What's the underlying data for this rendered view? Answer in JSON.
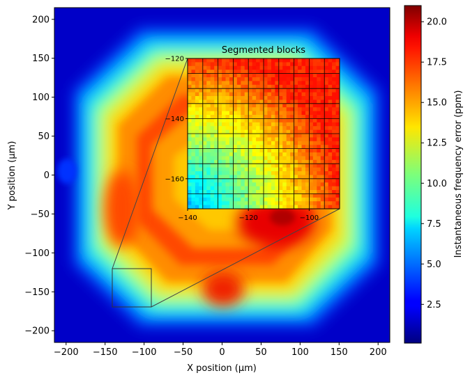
{
  "chart_data": [
    {
      "type": "heatmap",
      "xlabel": "X position (µm)",
      "ylabel": "Y position (µm)",
      "xlim": [
        -215,
        215
      ],
      "ylim": [
        -215,
        215
      ],
      "xticks": [
        -200,
        -150,
        -100,
        -50,
        0,
        50,
        100,
        150,
        200
      ],
      "yticks": [
        -200,
        -150,
        -100,
        -50,
        0,
        50,
        100,
        150,
        200
      ],
      "xtick_labels": [
        "−200",
        "−150",
        "−100",
        "−50",
        "0",
        "50",
        "100",
        "150",
        "200"
      ],
      "ytick_labels": [
        "−200",
        "−150",
        "−100",
        "−50",
        "0",
        "50",
        "100",
        "150",
        "200"
      ],
      "colormap": "jet",
      "description_of_field": "Ring-shaped region of elevated error around an octagonal pattern; peak (~21 ppm) near x=70, y=-50; low values (~1 ppm) outside radius ~200",
      "zoom_box": {
        "x": [
          -140,
          -90
        ],
        "y": [
          -170,
          -120
        ]
      }
    },
    {
      "type": "heatmap",
      "title": "Segmented blocks",
      "xlim": [
        -140,
        -90
      ],
      "ylim": [
        -170,
        -120
      ],
      "xticks": [
        -140,
        -120,
        -100
      ],
      "yticks": [
        -160,
        -140,
        -120
      ],
      "xtick_labels": [
        "−140",
        "−120",
        "−100"
      ],
      "ytick_labels": [
        "−160",
        "−140",
        "−120"
      ],
      "grid": true,
      "grid_cells": [
        10,
        10
      ],
      "colormap": "jet"
    }
  ],
  "colorbar": {
    "label": "Instantaneous frequency error (ppm)",
    "min": 0.1,
    "max": 21.0,
    "ticks": [
      2.5,
      5.0,
      7.5,
      10.0,
      12.5,
      15.0,
      17.5,
      20.0
    ],
    "tick_labels": [
      "2.5",
      "5.0",
      "7.5",
      "10.0",
      "12.5",
      "15.0",
      "17.5",
      "20.0"
    ]
  }
}
